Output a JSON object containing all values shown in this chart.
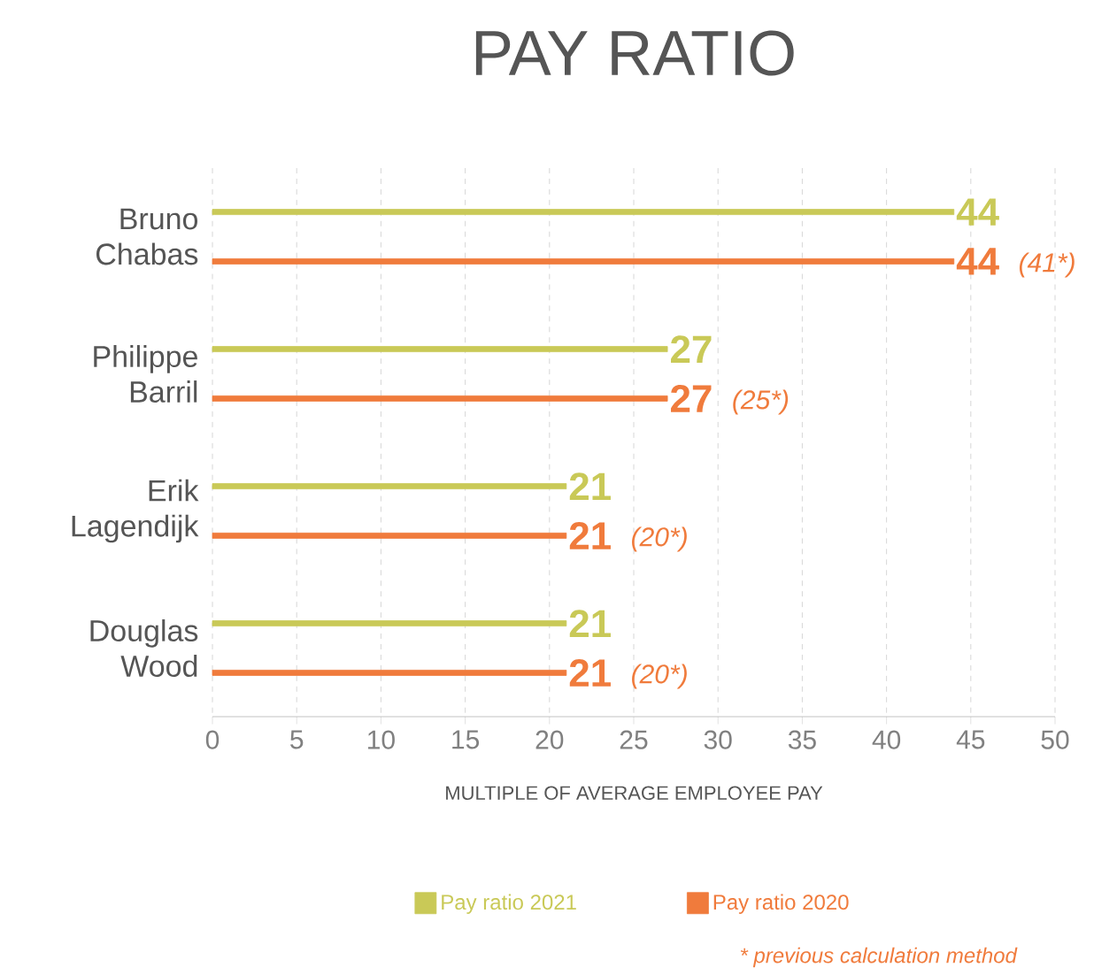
{
  "chart_data": {
    "type": "bar",
    "orientation": "horizontal",
    "title": "PAY RATIO",
    "xlabel": "MULTIPLE OF AVERAGE EMPLOYEE PAY",
    "categories": [
      "Bruno Chabas",
      "Philippe Barril",
      "Erik Lagendijk",
      "Douglas Wood"
    ],
    "series": [
      {
        "name": "Pay ratio 2021",
        "color": "#c9c957",
        "values": [
          44,
          27,
          21,
          21
        ],
        "value_labels": [
          "44",
          "27",
          "21",
          "21"
        ]
      },
      {
        "name": "Pay ratio 2020",
        "color": "#f07b3c",
        "values": [
          44,
          27,
          21,
          21
        ],
        "value_labels": [
          "44",
          "27",
          "21",
          "21"
        ]
      }
    ],
    "xlim": [
      0,
      50
    ],
    "xticks": [
      0,
      5,
      10,
      15,
      20,
      25,
      30,
      35,
      40,
      45,
      50
    ],
    "grid": "x",
    "legend": "bottom",
    "annotations": [
      "(41*)",
      "(25*)",
      "(20*)",
      "(20*)",
      "* previous calculation method"
    ]
  }
}
